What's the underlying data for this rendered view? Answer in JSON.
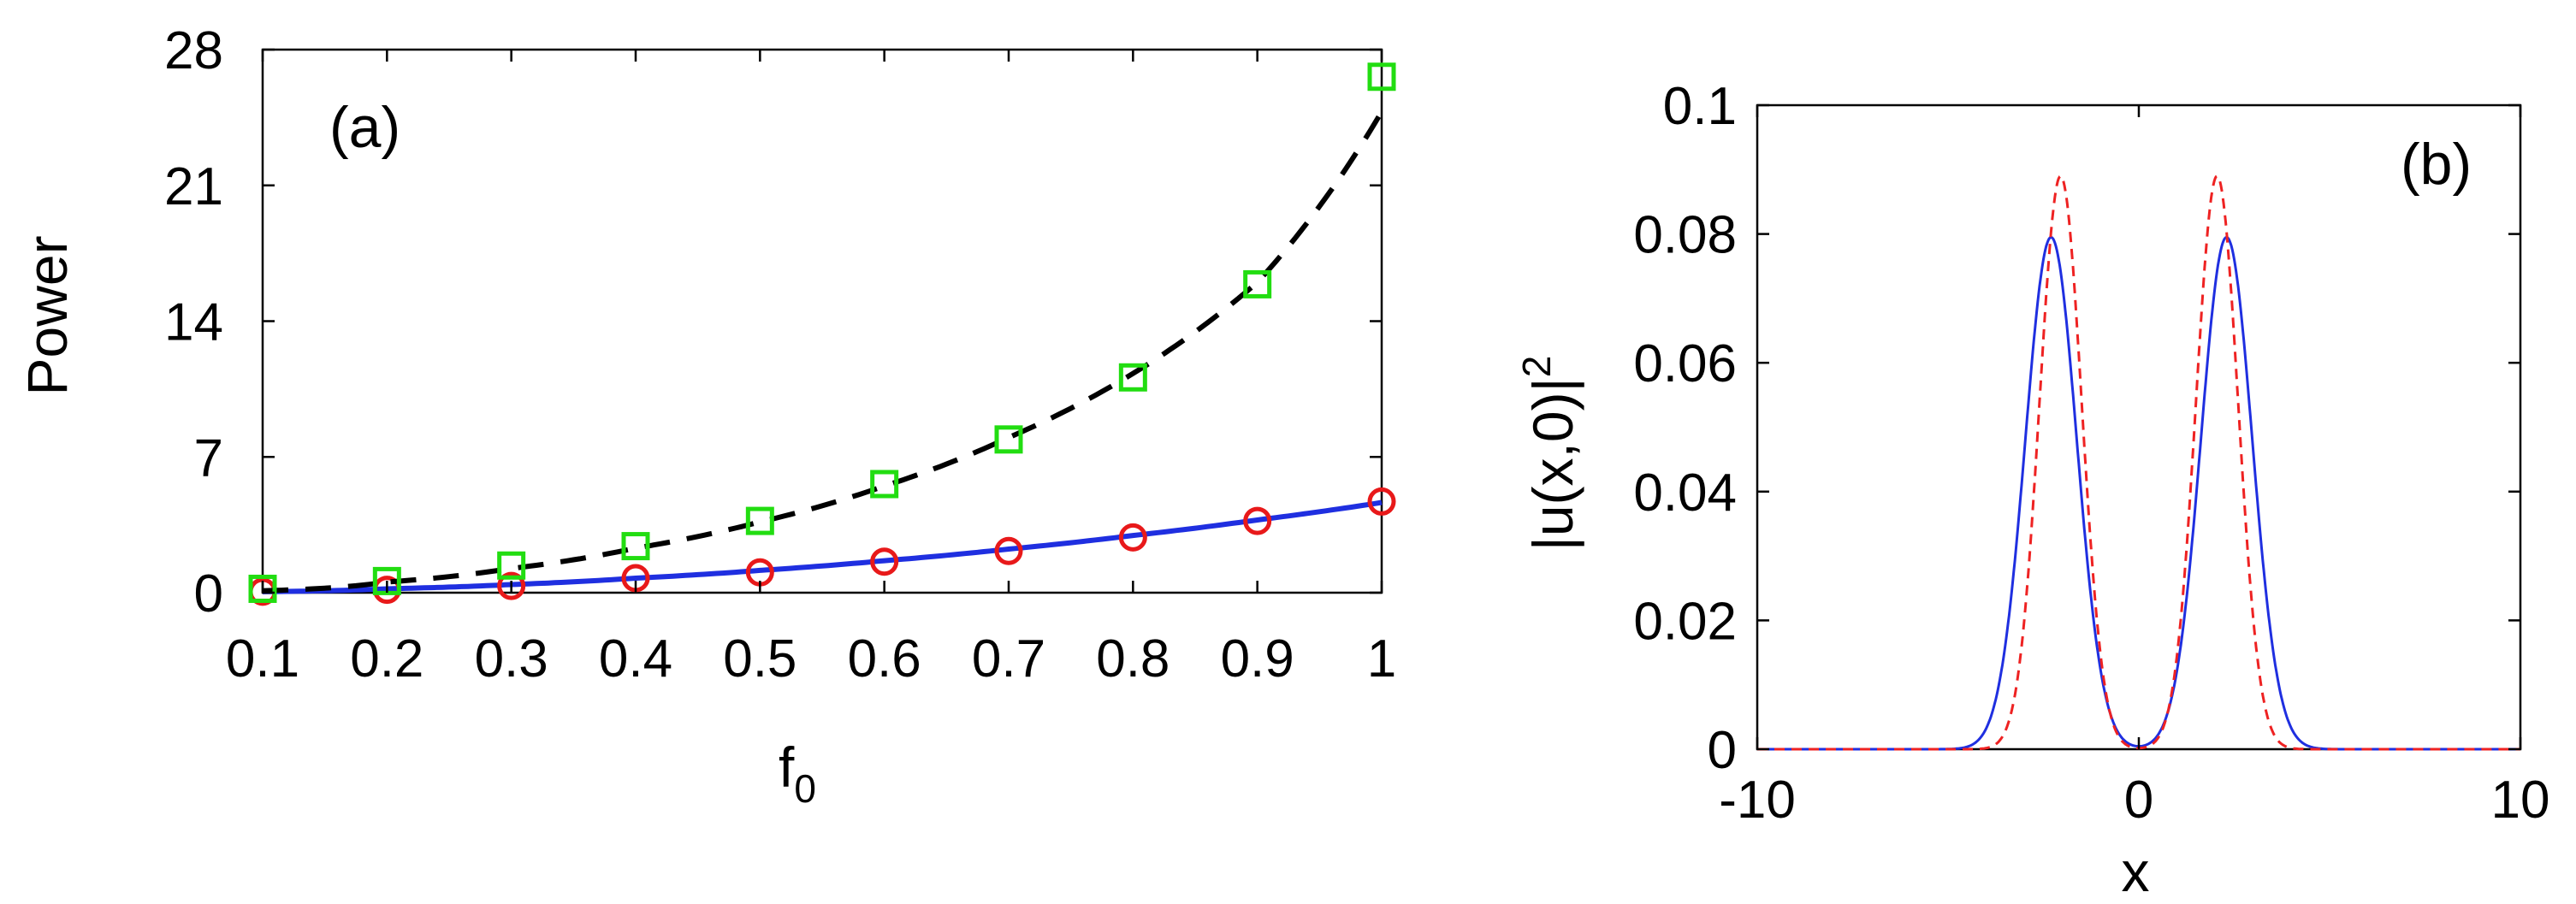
{
  "chart_data": [
    {
      "type": "line",
      "panel_label": "(a)",
      "xlabel": "f",
      "xlabel_sub": "0",
      "ylabel": "Power",
      "xlim": [
        0.1,
        1
      ],
      "ylim": [
        0,
        28
      ],
      "xticks": [
        0.1,
        0.2,
        0.3,
        0.4,
        0.5,
        0.6,
        0.7,
        0.8,
        0.9,
        1
      ],
      "xtick_labels": [
        "0.1",
        "0.2",
        "0.3",
        "0.4",
        "0.5",
        "0.6",
        "0.7",
        "0.8",
        "0.9",
        "1"
      ],
      "yticks": [
        0,
        7,
        14,
        21,
        28
      ],
      "ytick_labels": [
        "0",
        "7",
        "14",
        "21",
        "28"
      ],
      "grid": false,
      "series": [
        {
          "style": "solid-line",
          "color": "#1f2fe0",
          "x": [
            0.1,
            0.2,
            0.3,
            0.4,
            0.5,
            0.6,
            0.7,
            0.8,
            0.9,
            1.0
          ],
          "y": [
            0.05,
            0.2,
            0.42,
            0.75,
            1.15,
            1.65,
            2.25,
            2.95,
            3.75,
            4.65
          ]
        },
        {
          "style": "circle-markers",
          "color": "#e8191a",
          "x": [
            0.1,
            0.2,
            0.3,
            0.4,
            0.5,
            0.6,
            0.7,
            0.8,
            0.9,
            1.0
          ],
          "y": [
            0.05,
            0.15,
            0.35,
            0.75,
            1.05,
            1.6,
            2.15,
            2.85,
            3.7,
            4.7
          ]
        },
        {
          "style": "dashed-line",
          "color": "#000000",
          "x": [
            0.1,
            0.2,
            0.3,
            0.4,
            0.5,
            0.6,
            0.7,
            0.8,
            0.9,
            1.0
          ],
          "y": [
            0.1,
            0.55,
            1.25,
            2.3,
            3.65,
            5.5,
            8.0,
            11.3,
            16.0,
            24.8
          ]
        },
        {
          "style": "square-markers",
          "color": "#22dd11",
          "x": [
            0.1,
            0.2,
            0.3,
            0.4,
            0.5,
            0.6,
            0.7,
            0.8,
            0.9,
            1.0
          ],
          "y": [
            0.2,
            0.6,
            1.4,
            2.4,
            3.7,
            5.6,
            7.9,
            11.1,
            15.9,
            26.6
          ]
        }
      ]
    },
    {
      "type": "line",
      "panel_label": "(b)",
      "xlabel": "x",
      "ylabel": "|u(x,0)|",
      "ylabel_sup": "2",
      "xlim": [
        -10,
        10
      ],
      "ylim": [
        0,
        0.1
      ],
      "xticks": [
        -10,
        0,
        10
      ],
      "xtick_labels": [
        "-10",
        "0",
        "10"
      ],
      "yticks": [
        0,
        0.02,
        0.04,
        0.06,
        0.08,
        0.1
      ],
      "ytick_labels": [
        "0",
        "0.02",
        "0.04",
        "0.06",
        "0.08",
        "0.1"
      ],
      "grid": false,
      "series": [
        {
          "style": "solid-line",
          "color": "#1f2fe0",
          "profile": {
            "amplitude": 0.0795,
            "centers": [
              -2.3,
              2.3
            ],
            "width": 0.95
          }
        },
        {
          "style": "dashed-line",
          "color": "#ee2222",
          "profile": {
            "amplitude": 0.089,
            "centers": [
              -2.05,
              2.05
            ],
            "width": 0.78
          }
        }
      ]
    }
  ]
}
